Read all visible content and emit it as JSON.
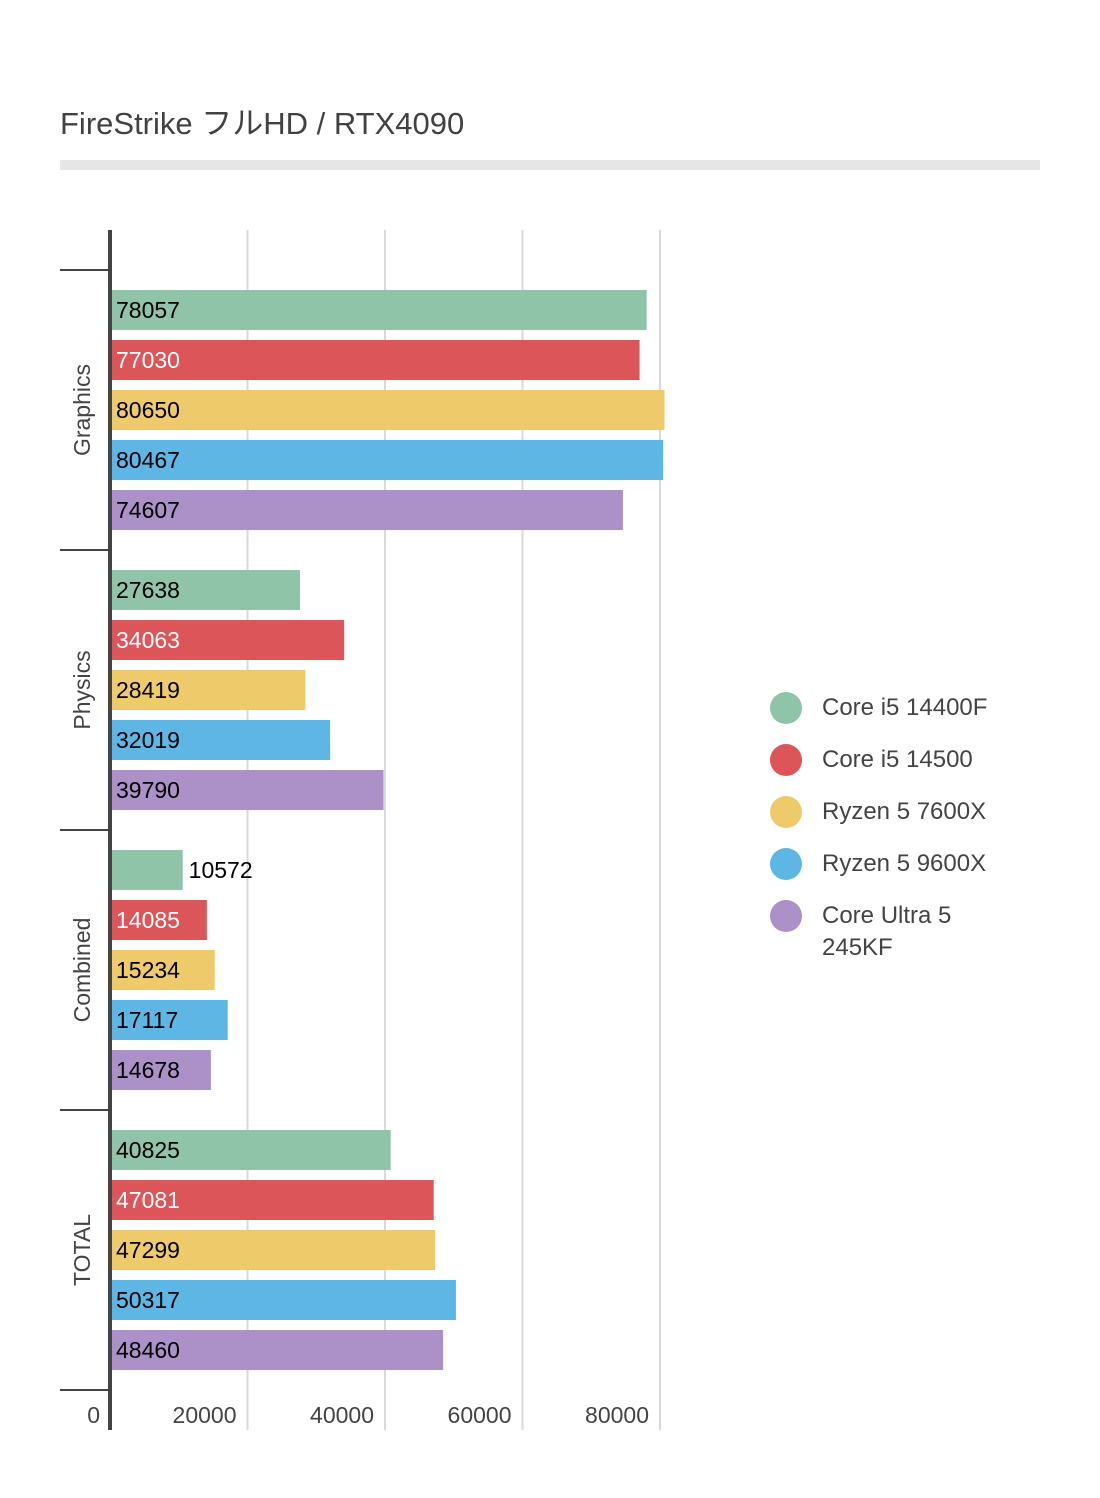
{
  "title": "FireStrike フルHD / RTX4090",
  "chart_data": {
    "type": "bar",
    "orientation": "horizontal",
    "title": "FireStrike フルHD / RTX4090",
    "xlabel": "",
    "ylabel": "",
    "xlim": [
      0,
      90000
    ],
    "grid": true,
    "legend_position": "right",
    "x_ticks": [
      "0",
      "20000",
      "40000",
      "60000",
      "80000"
    ],
    "x_tick_values": [
      0,
      20000,
      40000,
      60000,
      80000
    ],
    "categories": [
      "Graphics",
      "Physics",
      "Combined",
      "TOTAL"
    ],
    "series": [
      {
        "name": "Core i5 14400F",
        "color": "#8fc4a8",
        "label_color": "#000000",
        "values": [
          78057,
          27638,
          10572,
          40825
        ]
      },
      {
        "name": "Core i5 14500",
        "color": "#dc5558",
        "label_color": "#ffffff",
        "values": [
          77030,
          34063,
          14085,
          47081
        ]
      },
      {
        "name": "Ryzen 5 7600X",
        "color": "#efca6a",
        "label_color": "#000000",
        "values": [
          80650,
          28419,
          15234,
          47299
        ]
      },
      {
        "name": "Ryzen 5 9600X",
        "color": "#5db6e4",
        "label_color": "#000000",
        "values": [
          80467,
          32019,
          17117,
          50317
        ]
      },
      {
        "name": "Core Ultra 5 245KF",
        "color": "#ab91c7",
        "label_color": "#000000",
        "values": [
          74607,
          39790,
          14678,
          48460
        ]
      }
    ]
  }
}
